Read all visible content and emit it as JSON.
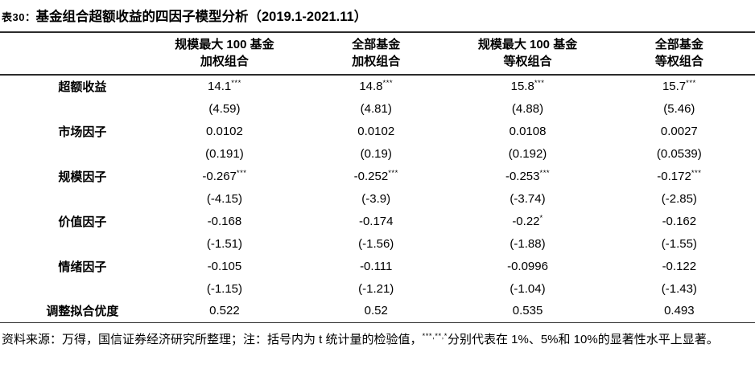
{
  "title": {
    "prefix": "表30：",
    "main": "基金组合超额收益的四因子模型分析（2019.1-2021.11）"
  },
  "table": {
    "header": {
      "cols": [
        {
          "line1": "规模最大 100 基金",
          "line2": "加权组合"
        },
        {
          "line1": "全部基金",
          "line2": "加权组合"
        },
        {
          "line1": "规模最大 100 基金",
          "line2": "等权组合"
        },
        {
          "line1": "全部基金",
          "line2": "等权组合"
        }
      ]
    },
    "rows": [
      {
        "label": "超额收益",
        "values": [
          {
            "v": "14.1",
            "stars": "***"
          },
          {
            "v": "14.8",
            "stars": "***"
          },
          {
            "v": "15.8",
            "stars": "***"
          },
          {
            "v": "15.7",
            "stars": "***"
          }
        ],
        "tstats": [
          "(4.59)",
          "(4.81)",
          "(4.88)",
          "(5.46)"
        ]
      },
      {
        "label": "市场因子",
        "values": [
          {
            "v": "0.0102"
          },
          {
            "v": "0.0102"
          },
          {
            "v": "0.0108"
          },
          {
            "v": "0.0027"
          }
        ],
        "tstats": [
          "(0.191)",
          "(0.19)",
          "(0.192)",
          "(0.0539)"
        ]
      },
      {
        "label": "规模因子",
        "values": [
          {
            "v": "-0.267",
            "stars": "***"
          },
          {
            "v": "-0.252",
            "stars": "***"
          },
          {
            "v": "-0.253",
            "stars": "***"
          },
          {
            "v": "-0.172",
            "stars": "***"
          }
        ],
        "tstats": [
          "(-4.15)",
          "(-3.9)",
          "(-3.74)",
          "(-2.85)"
        ]
      },
      {
        "label": "价值因子",
        "values": [
          {
            "v": "-0.168"
          },
          {
            "v": "-0.174"
          },
          {
            "v": "-0.22",
            "stars": "*"
          },
          {
            "v": "-0.162"
          }
        ],
        "tstats": [
          "(-1.51)",
          "(-1.56)",
          "(-1.88)",
          "(-1.55)"
        ]
      },
      {
        "label": "情绪因子",
        "values": [
          {
            "v": "-0.105"
          },
          {
            "v": "-0.111"
          },
          {
            "v": "-0.0996"
          },
          {
            "v": "-0.122"
          }
        ],
        "tstats": [
          "(-1.15)",
          "(-1.21)",
          "(-1.04)",
          "(-1.43)"
        ]
      },
      {
        "label": "调整拟合优度",
        "values": [
          {
            "v": "0.522"
          },
          {
            "v": "0.52"
          },
          {
            "v": "0.535"
          },
          {
            "v": "0.493"
          }
        ]
      }
    ]
  },
  "footer": {
    "before_sup": "资料来源：万得，国信证券经济研究所整理；注：括号内为 t 统计量的检验值，",
    "sup": "***,**,*",
    "after_sup": "分别代表在 1%、5%和 10%的显著性水平上显著。"
  },
  "colors": {
    "text": "#000000",
    "rule": "#2b2b2b",
    "background": "#ffffff"
  }
}
